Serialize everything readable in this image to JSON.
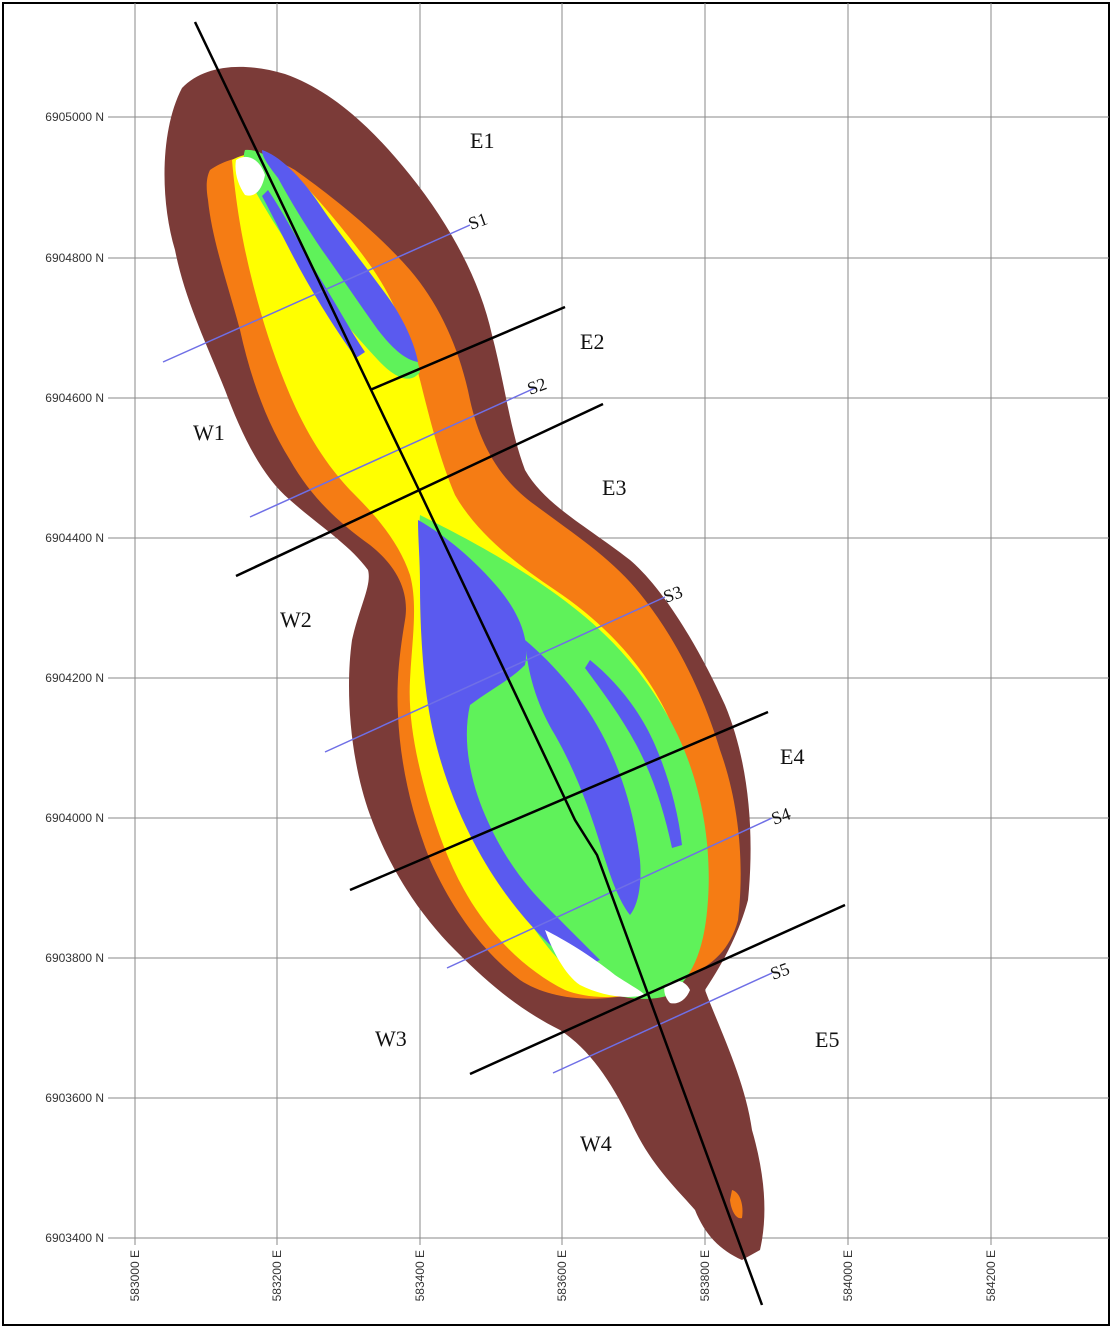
{
  "northing_ticks": [
    "6905000 N",
    "6904800 N",
    "6904600 N",
    "6904400 N",
    "6904200 N",
    "6904000 N",
    "6903800 N",
    "6903600 N",
    "6903400 N"
  ],
  "easting_ticks": [
    "583000 E",
    "583200 E",
    "583400 E",
    "583600 E",
    "583800 E",
    "584000 E",
    "584200 E"
  ],
  "zones": [
    "E1",
    "E2",
    "E3",
    "E4",
    "E5",
    "W1",
    "W2",
    "W3",
    "W4"
  ],
  "sections": [
    "S1",
    "S2",
    "S3",
    "S4",
    "S5"
  ],
  "colors": {
    "outer": "#7b3b38",
    "orange": "#f57c14",
    "yellow": "#ffff00",
    "green": "#5ff25a",
    "blue": "#5a5aef",
    "white": "#ffffff",
    "grid": "#8a8a8a",
    "section_line": "#6f6fe6",
    "boundary": "#000000"
  }
}
